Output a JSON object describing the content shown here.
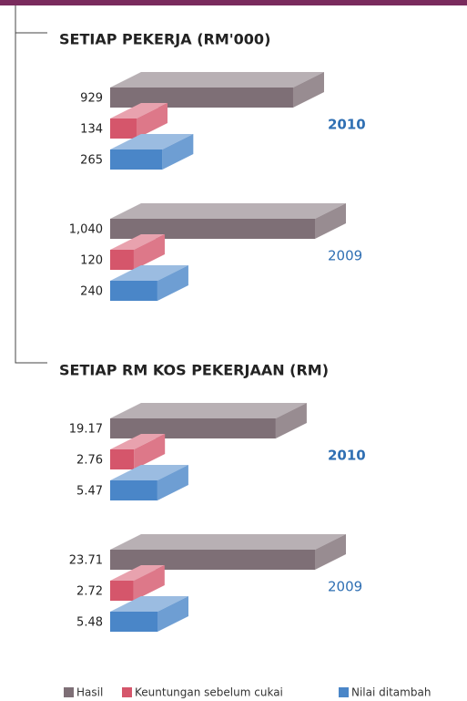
{
  "chart_data": [
    {
      "type": "bar3d",
      "title": "SETIAP PEKERJA (RM'000)",
      "categories": [
        "2010",
        "2009"
      ],
      "series": [
        {
          "name": "Hasil",
          "color": "#7e6f76",
          "values": [
            929,
            1040
          ],
          "value_labels": [
            "929",
            "1,040"
          ]
        },
        {
          "name": "Keuntungan sebelum cukai",
          "color": "#d5566b",
          "values": [
            134,
            120
          ]
        },
        {
          "name": "Nilai ditambah",
          "color": "#4a86c8",
          "values": [
            265,
            240
          ]
        }
      ]
    },
    {
      "type": "bar3d",
      "title": "SETIAP RM KOS PEKERJAAN (RM)",
      "categories": [
        "2010",
        "2009"
      ],
      "series": [
        {
          "name": "Hasil",
          "color": "#7e6f76",
          "values": [
            19.17,
            23.71
          ]
        },
        {
          "name": "Keuntungan sebelum cukai",
          "color": "#d5566b",
          "values": [
            2.76,
            2.72
          ]
        },
        {
          "name": "Nilai ditambah",
          "color": "#4a86c8",
          "values": [
            5.47,
            5.48
          ]
        }
      ]
    }
  ]
}
